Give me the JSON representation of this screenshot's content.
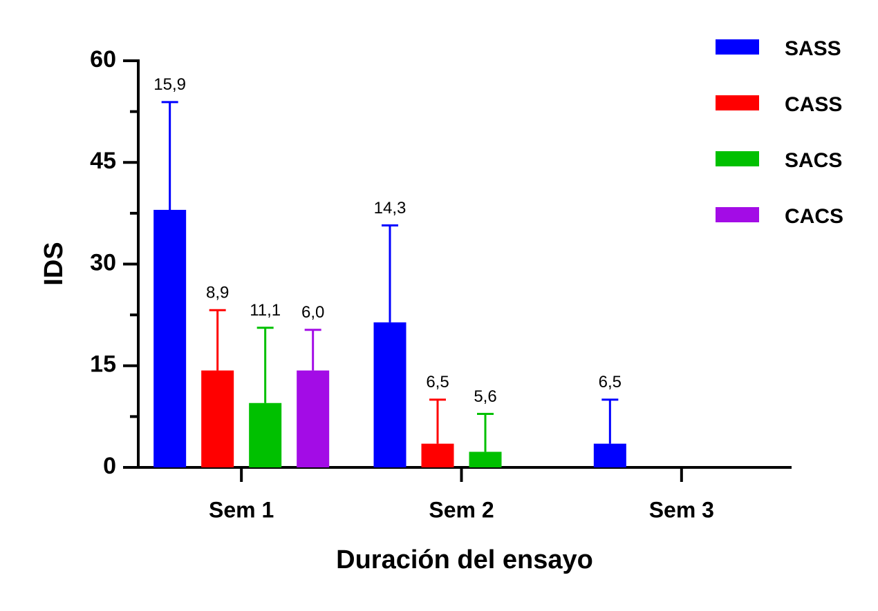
{
  "chart_data": {
    "type": "bar",
    "xlabel": "Duración del ensayo",
    "ylabel": "IDS",
    "categories": [
      "Sem 1",
      "Sem 2",
      "Sem 3"
    ],
    "series": [
      {
        "name": "SASS",
        "color": "#0000ff",
        "values": [
          38.0,
          21.4,
          3.5
        ],
        "errors": [
          15.9,
          14.3,
          6.5
        ],
        "error_labels": [
          "15,9",
          "14,3",
          "6,5"
        ]
      },
      {
        "name": "CASS",
        "color": "#ff0000",
        "values": [
          14.3,
          3.5,
          null
        ],
        "errors": [
          8.9,
          6.5,
          null
        ],
        "error_labels": [
          "8,9",
          "6,5",
          null
        ]
      },
      {
        "name": "SACS",
        "color": "#00c000",
        "values": [
          9.5,
          2.3,
          null
        ],
        "errors": [
          11.1,
          5.6,
          null
        ],
        "error_labels": [
          "11,1",
          "5,6",
          null
        ]
      },
      {
        "name": "CACS",
        "color": "#a30ce6",
        "values": [
          14.3,
          null,
          null
        ],
        "errors": [
          6.0,
          null,
          null
        ],
        "error_labels": [
          "6,0",
          null,
          null
        ]
      }
    ],
    "ylim": [
      0,
      60
    ],
    "yticks": [
      0,
      15,
      30,
      45,
      60
    ],
    "yminorticks": [
      7.5,
      22.5,
      37.5,
      52.5
    ],
    "legend": "upper right"
  }
}
